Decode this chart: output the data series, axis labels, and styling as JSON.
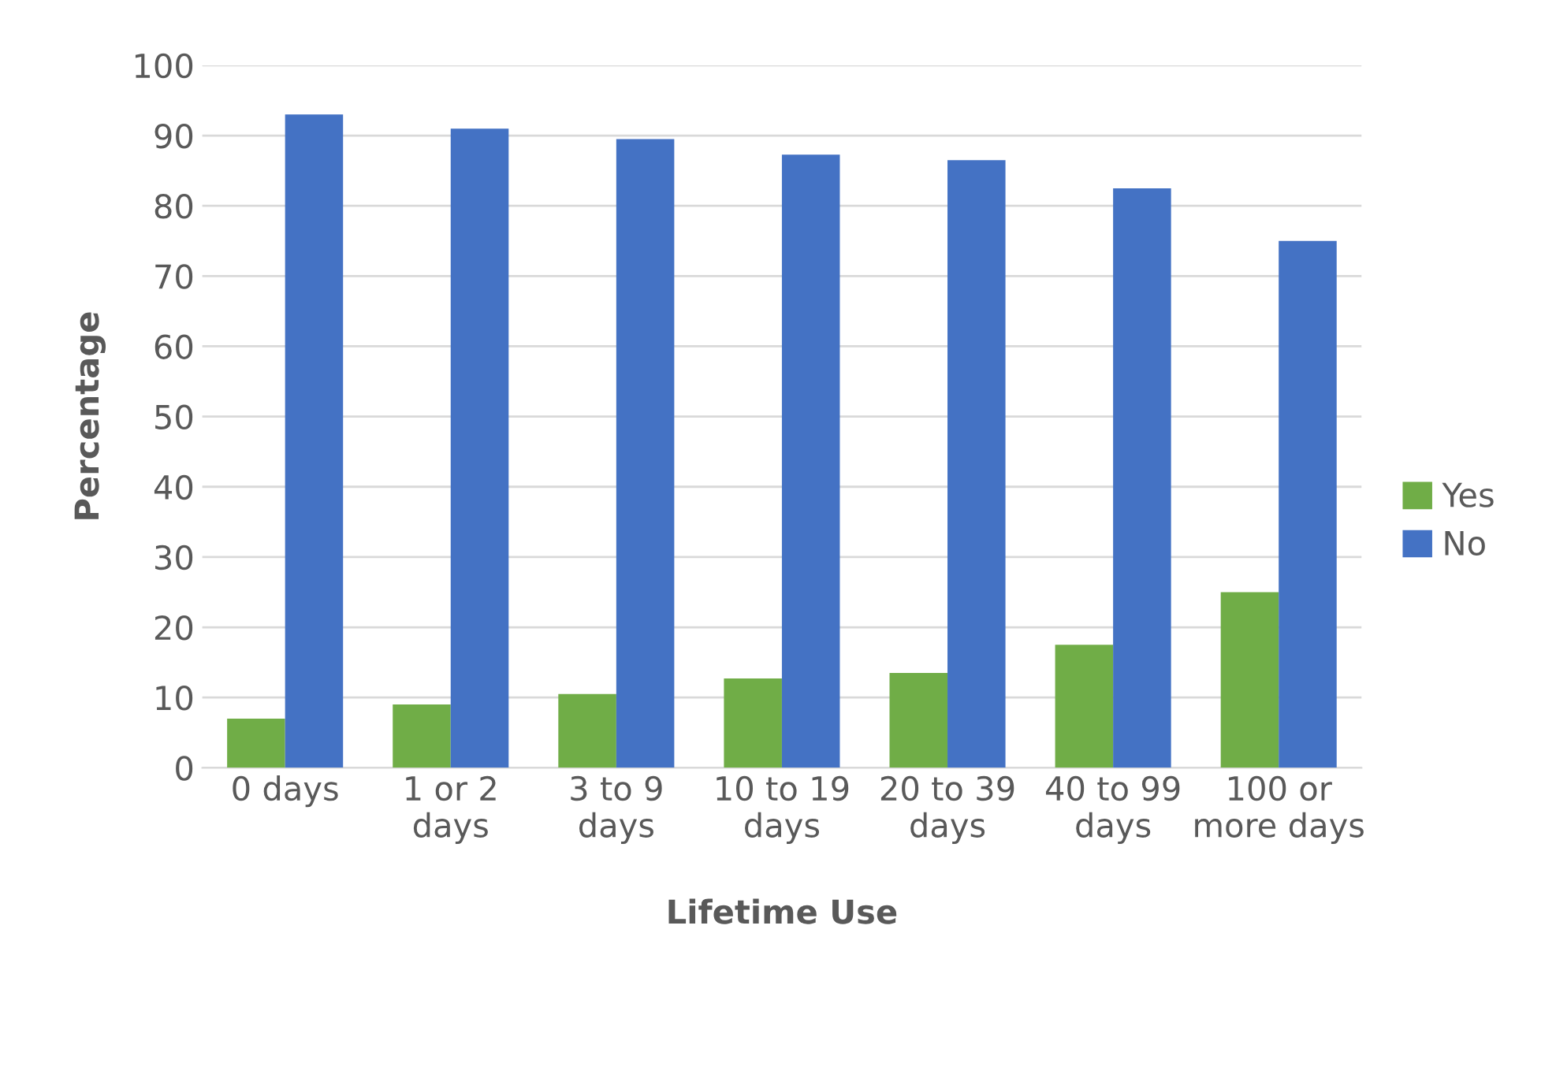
{
  "chart_data": {
    "type": "bar",
    "xlabel": "Lifetime Use",
    "ylabel": "Percentage",
    "categories": [
      "0 days",
      "1 or 2 days",
      "3 to 9 days",
      "10 to 19 days",
      "20 to 39 days",
      "40 to 99 days",
      "100 or more days"
    ],
    "series": [
      {
        "name": "Yes",
        "color": "#70ad47",
        "values": [
          7,
          9,
          10.5,
          12.7,
          13.5,
          17.5,
          25
        ]
      },
      {
        "name": "No",
        "color": "#4472c4",
        "values": [
          93,
          91,
          89.5,
          87.3,
          86.5,
          82.5,
          75
        ]
      }
    ],
    "ylim": [
      0,
      100
    ],
    "yticks": [
      0,
      10,
      20,
      30,
      40,
      50,
      60,
      70,
      80,
      90,
      100
    ],
    "grid": "y",
    "legend": "right"
  }
}
